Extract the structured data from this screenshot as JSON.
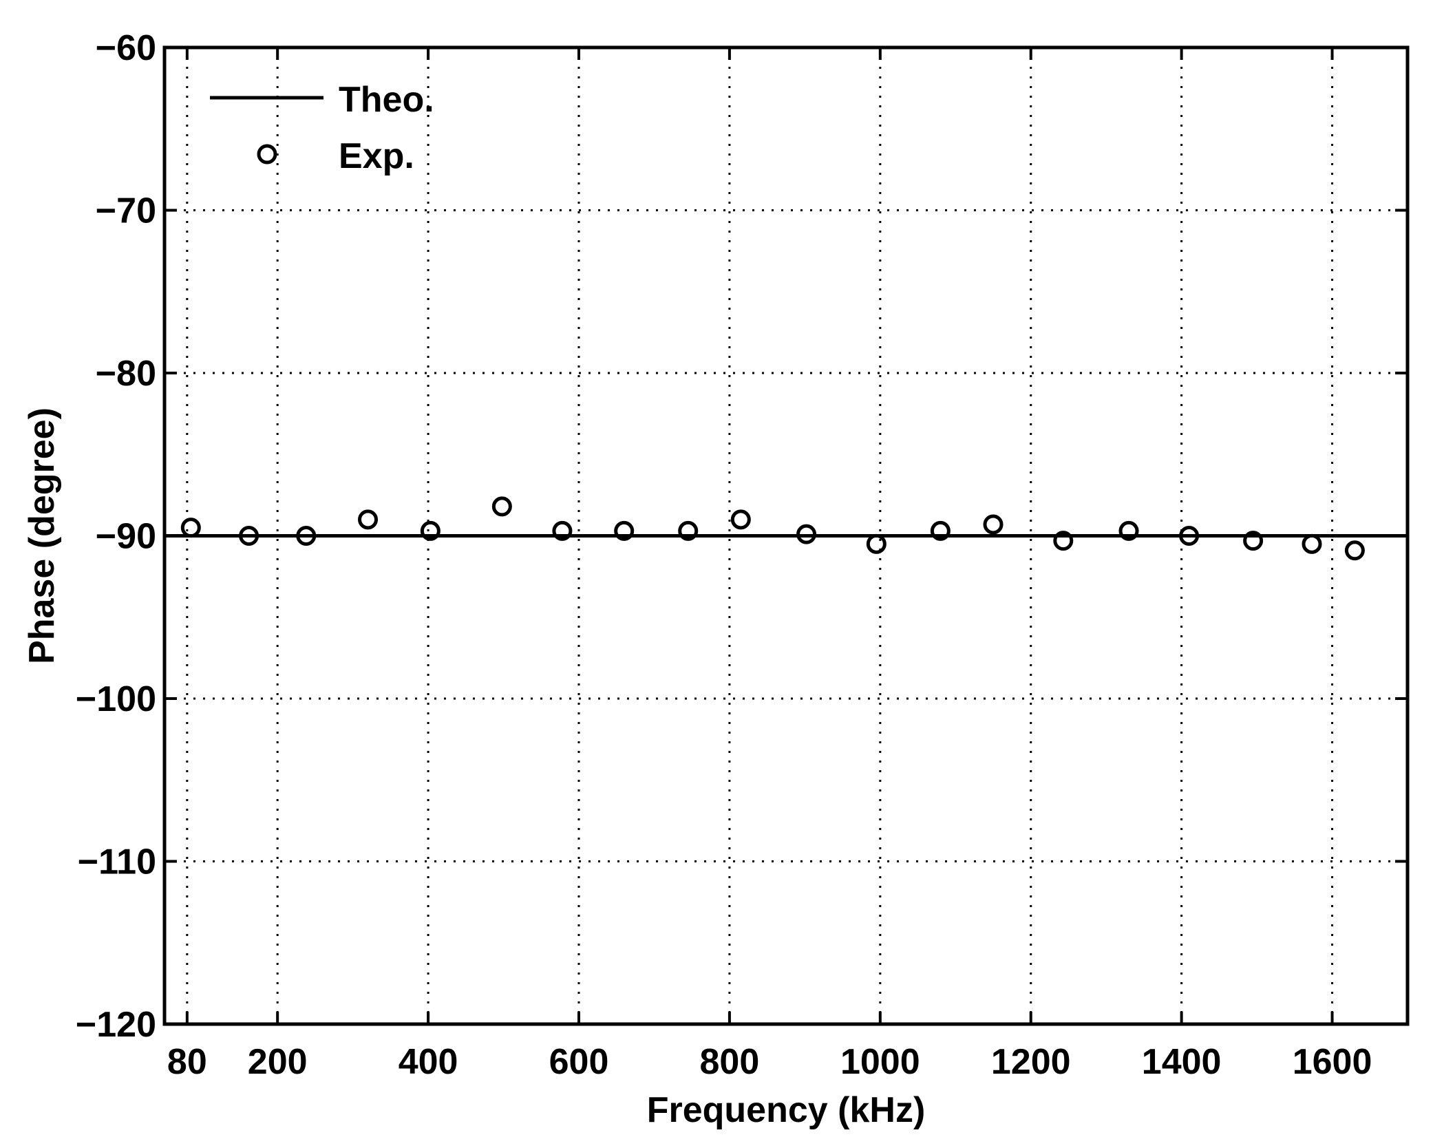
{
  "chart_data": {
    "type": "scatter",
    "title": "",
    "xlabel": "Frequency (kHz)",
    "ylabel": "Phase (degree)",
    "xlim": [
      50,
      1700
    ],
    "ylim": [
      -120,
      -60
    ],
    "xticks": [
      80,
      200,
      400,
      600,
      800,
      1000,
      1200,
      1400,
      1600
    ],
    "xtick_labels": [
      "80",
      "200",
      "400",
      "600",
      "800",
      "1000",
      "1200",
      "1400",
      "1600"
    ],
    "yticks": [
      -60,
      -70,
      -80,
      -90,
      -100,
      -110,
      -120
    ],
    "ytick_labels": [
      "−60",
      "−70",
      "−80",
      "−90",
      "−100",
      "−110",
      "−120"
    ],
    "grid": true,
    "legend_position": "top-left",
    "series": [
      {
        "name": "Theo.",
        "style": "line",
        "color": "#000000",
        "x": [
          50,
          1700
        ],
        "y": [
          -90,
          -90
        ]
      },
      {
        "name": "Exp.",
        "style": "open-circle",
        "color": "#000000",
        "x": [
          85,
          162,
          238,
          320,
          403,
          498,
          578,
          660,
          745,
          815,
          902,
          995,
          1080,
          1150,
          1243,
          1330,
          1410,
          1495,
          1573,
          1630
        ],
        "y": [
          -89.5,
          -90.0,
          -90.0,
          -89.0,
          -89.7,
          -88.2,
          -89.7,
          -89.7,
          -89.7,
          -89.0,
          -89.9,
          -90.5,
          -89.7,
          -89.3,
          -90.3,
          -89.7,
          -90.0,
          -90.3,
          -90.5,
          -90.9
        ]
      }
    ]
  }
}
